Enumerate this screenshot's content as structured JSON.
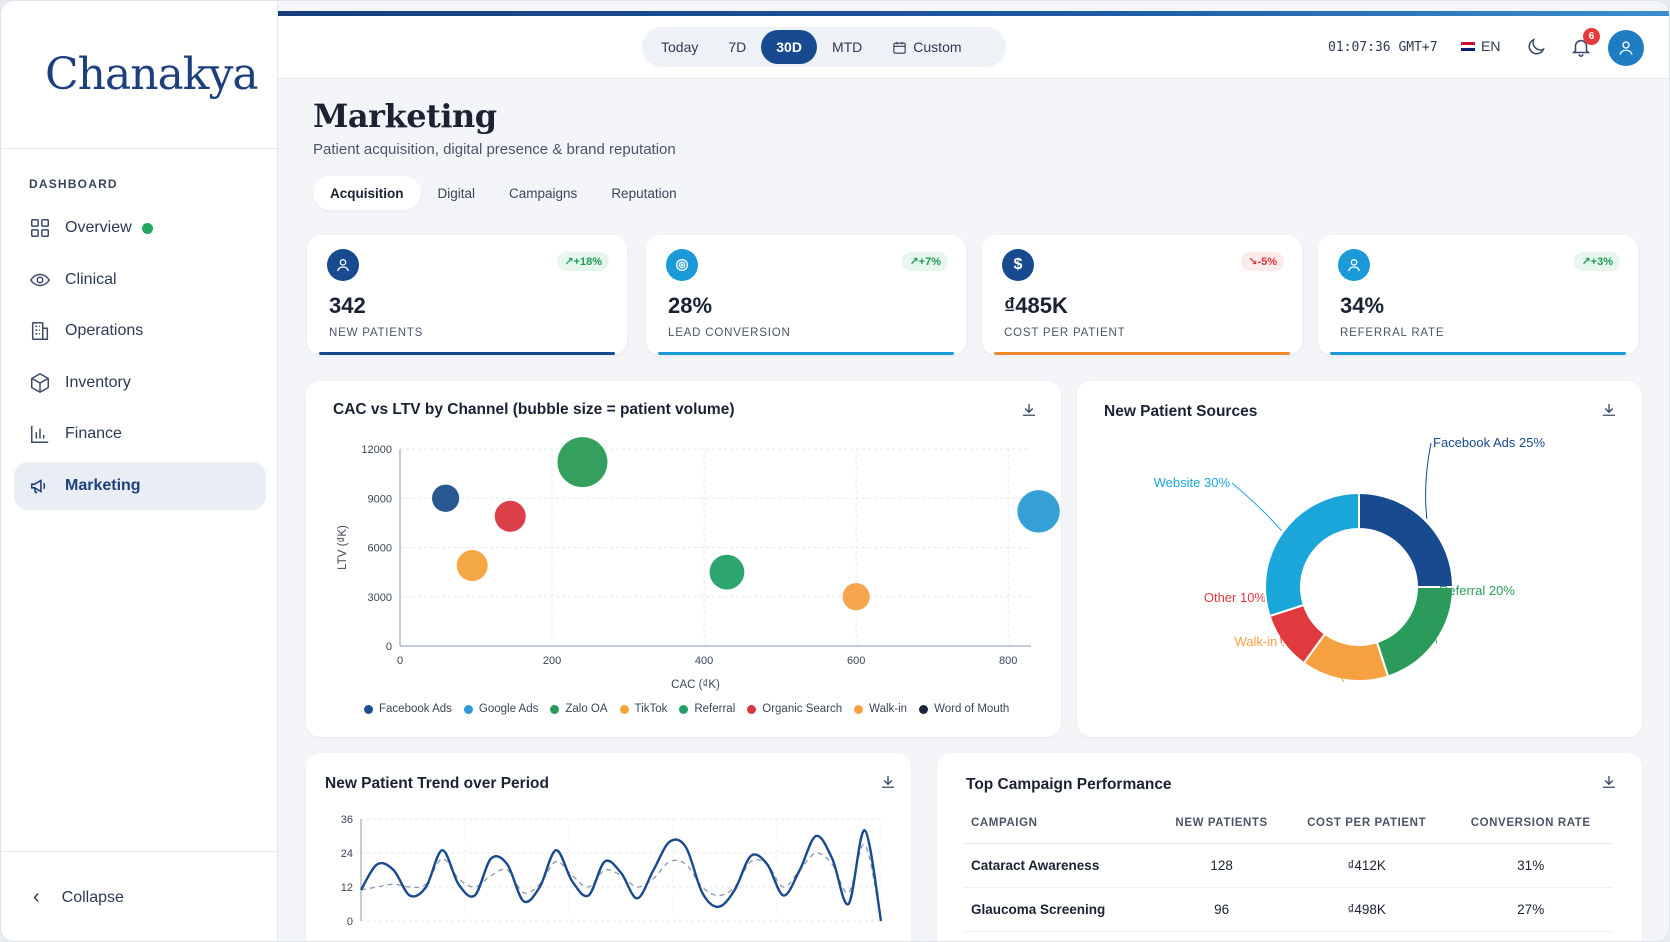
{
  "app": {
    "brand": "Chanakya"
  },
  "sidebar": {
    "heading": "DASHBOARD",
    "items": [
      {
        "label": "Overview",
        "icon": "grid-icon"
      },
      {
        "label": "Clinical",
        "icon": "eye-icon"
      },
      {
        "label": "Operations",
        "icon": "building-icon"
      },
      {
        "label": "Inventory",
        "icon": "box-icon"
      },
      {
        "label": "Finance",
        "icon": "bar-chart-icon"
      },
      {
        "label": "Marketing",
        "icon": "megaphone-icon",
        "active": true
      }
    ],
    "collapse_label": "Collapse"
  },
  "topbar": {
    "periods": [
      "Today",
      "7D",
      "30D",
      "MTD",
      "Custom"
    ],
    "active_period": "30D",
    "clock": "01:07:36 GMT+7",
    "language": "EN",
    "notification_count": "6"
  },
  "page": {
    "title": "Marketing",
    "subtitle": "Patient acquisition, digital presence & brand reputation",
    "tabs": [
      "Acquisition",
      "Digital",
      "Campaigns",
      "Reputation"
    ],
    "active_tab": "Acquisition"
  },
  "kpis": [
    {
      "value": "342",
      "label": "NEW PATIENTS",
      "delta": "+18%",
      "trend": "up",
      "icon": "user-icon",
      "color": "#174a8e"
    },
    {
      "value": "28%",
      "label": "LEAD CONVERSION",
      "delta": "+7%",
      "trend": "up",
      "icon": "target-icon",
      "color": "#1a9ad6"
    },
    {
      "value": "₫485K",
      "label": "COST PER PATIENT",
      "delta": "-5%",
      "trend": "down",
      "icon": "dollar-icon",
      "color": "#f08a2c"
    },
    {
      "value": "34%",
      "label": "REFERRAL RATE",
      "delta": "+3%",
      "trend": "up",
      "icon": "user-icon",
      "color": "#1a9ad6"
    }
  ],
  "bubble_card": {
    "title": "CAC vs LTV by Channel (bubble size = patient volume)"
  },
  "sources_card": {
    "title": "New Patient Sources"
  },
  "trend_card": {
    "title": "New Patient Trend over Period"
  },
  "campaign_card": {
    "title": "Top Campaign Performance",
    "columns": [
      "CAMPAIGN",
      "NEW PATIENTS",
      "COST PER PATIENT",
      "CONVERSION RATE"
    ],
    "rows": [
      [
        "Cataract Awareness",
        "128",
        "₫412K",
        "31%"
      ],
      [
        "Glaucoma Screening",
        "96",
        "₫498K",
        "27%"
      ]
    ]
  },
  "chart_data": [
    {
      "type": "scatter",
      "title": "CAC vs LTV by Channel (bubble size = patient volume)",
      "xlabel": "CAC (₫K)",
      "ylabel": "LTV (₫K)",
      "xlim": [
        0,
        830
      ],
      "ylim": [
        0,
        12000
      ],
      "xticks": [
        0,
        200,
        400,
        600,
        800
      ],
      "yticks": [
        0,
        3000,
        6000,
        9000,
        12000
      ],
      "grid": true,
      "legend_position": "bottom",
      "series": [
        {
          "name": "Facebook Ads",
          "color": "#1d4f8c",
          "x": 60,
          "y": 9000,
          "size": 2
        },
        {
          "name": "Google Ads",
          "color": "#2a9bd4",
          "x": 840,
          "y": 8200,
          "size": 4
        },
        {
          "name": "Zalo OA",
          "color": "#2a9a56",
          "x": 240,
          "y": 11200,
          "size": 5
        },
        {
          "name": "TikTok",
          "color": "#f3a33a",
          "x": 95,
          "y": 4900,
          "size": 2.5
        },
        {
          "name": "Referral",
          "color": "#22a066",
          "x": 430,
          "y": 4500,
          "size": 3
        },
        {
          "name": "Organic Search",
          "color": "#d9363e",
          "x": 145,
          "y": 7900,
          "size": 2.5
        },
        {
          "name": "Walk-in",
          "color": "#f5a142",
          "x": 600,
          "y": 3000,
          "size": 2
        },
        {
          "name": "Word of Mouth",
          "color": "#1b2540",
          "x": null,
          "y": null,
          "size": 0
        }
      ]
    },
    {
      "type": "pie",
      "title": "New Patient Sources",
      "donut": true,
      "slices": [
        {
          "label": "Facebook Ads 25%",
          "value": 25,
          "color": "#174a8e"
        },
        {
          "label": "Referral 20%",
          "value": 20,
          "color": "#2b9b5b"
        },
        {
          "label": "Walk-in 15%",
          "value": 15,
          "color": "#f5a142"
        },
        {
          "label": "Other 10%",
          "value": 10,
          "color": "#e0393e"
        },
        {
          "label": "Website 30%",
          "value": 30,
          "color": "#1aa6d9"
        }
      ]
    },
    {
      "type": "line",
      "title": "New Patient Trend over Period",
      "ylim": [
        0,
        36
      ],
      "yticks": [
        0,
        12,
        24,
        36
      ],
      "grid": true,
      "series": [
        {
          "style": "solid",
          "color": "#174a8e",
          "values": [
            11,
            20,
            18,
            9,
            12,
            25,
            13,
            9,
            22,
            20,
            7,
            12,
            25,
            14,
            9,
            21,
            17,
            8,
            18,
            28,
            26,
            10,
            5,
            11,
            23,
            20,
            9,
            18,
            30,
            22,
            6,
            32,
            0
          ]
        },
        {
          "style": "dashed",
          "color": "#8a98ab",
          "values": [
            11,
            12,
            13,
            12,
            13,
            22,
            15,
            12,
            16,
            18,
            10,
            13,
            21,
            16,
            12,
            18,
            16,
            12,
            15,
            21,
            20,
            12,
            9,
            12,
            21,
            20,
            12,
            18,
            24,
            20,
            10,
            27,
            0
          ]
        }
      ]
    }
  ]
}
